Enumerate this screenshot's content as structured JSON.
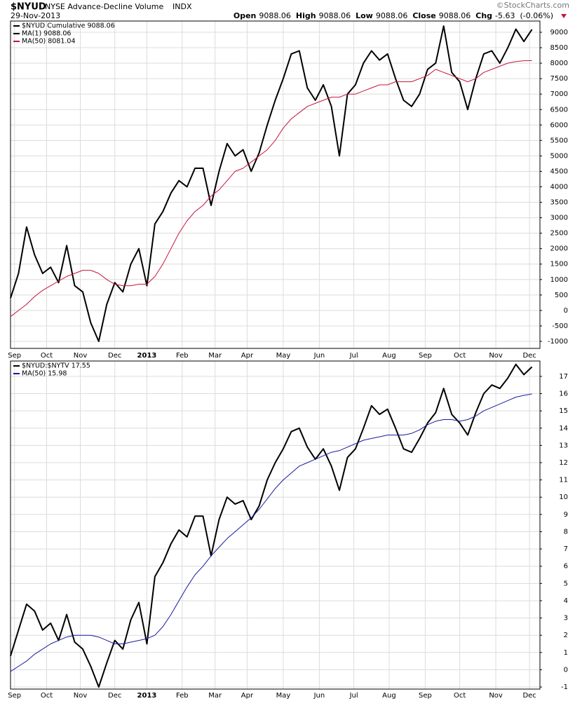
{
  "header": {
    "symbol": "$NYUD",
    "name": "NYSE Advance-Decline Volume",
    "exchange": "INDX",
    "source": "©StockCharts.com",
    "date": "29-Nov-2013",
    "quote": [
      {
        "label": "Open",
        "value": 9088.06
      },
      {
        "label": "High",
        "value": 9088.06
      },
      {
        "label": "Low",
        "value": 9088.06
      },
      {
        "label": "Close",
        "value": 9088.06
      },
      {
        "label": "Chg",
        "value": -5.63
      }
    ],
    "chg_pct": "(-0.06%)"
  },
  "chart_data": [
    {
      "type": "line",
      "xlim": [
        0,
        66
      ],
      "ylim": [
        -1227,
        9363
      ],
      "yticks": [
        -1000,
        -500,
        0,
        500,
        1000,
        1500,
        2000,
        2500,
        3000,
        3500,
        4000,
        4500,
        5000,
        5500,
        6000,
        6500,
        7000,
        7500,
        8000,
        8500,
        9000
      ],
      "xticks": [
        {
          "value": 0.5,
          "label": "Sep"
        },
        {
          "value": 4.5,
          "label": "Oct"
        },
        {
          "value": 8.7,
          "label": "Nov"
        },
        {
          "value": 13,
          "label": "Dec"
        },
        {
          "value": 17,
          "label": "2013",
          "bold": true
        },
        {
          "value": 21.4,
          "label": "Feb"
        },
        {
          "value": 25.5,
          "label": "Mar"
        },
        {
          "value": 29.5,
          "label": "Apr"
        },
        {
          "value": 34,
          "label": "May"
        },
        {
          "value": 38.5,
          "label": "Jun"
        },
        {
          "value": 42.8,
          "label": "Jul"
        },
        {
          "value": 47.2,
          "label": "Aug"
        },
        {
          "value": 51.7,
          "label": "Sep"
        },
        {
          "value": 56,
          "label": "Oct"
        },
        {
          "value": 60.5,
          "label": "Nov"
        },
        {
          "value": 64.7,
          "label": "Dec"
        }
      ],
      "grid": true,
      "series": [
        {
          "name": "$NYUD  Cumulative 9088.06",
          "color": "#000000",
          "width": 2,
          "values": [
            400,
            1200,
            2700,
            1800,
            1200,
            1400,
            900,
            2100,
            800,
            600,
            -400,
            -1000,
            200,
            900,
            600,
            1500,
            2000,
            800,
            2800,
            3200,
            3800,
            4200,
            4000,
            4600,
            4600,
            3400,
            4500,
            5400,
            5000,
            5200,
            4500,
            5100,
            6000,
            6800,
            7500,
            8300,
            8400,
            7200,
            6800,
            7300,
            6600,
            5000,
            7000,
            7300,
            8000,
            8400,
            8100,
            8300,
            7500,
            6800,
            6600,
            7000,
            7800,
            8000,
            9200,
            7700,
            7400,
            6500,
            7500,
            8300,
            8400,
            8000,
            8500,
            9100,
            8700,
            9088.06
          ]
        },
        {
          "name": "MA(1) 9088.06",
          "color": "#000000",
          "width": 1,
          "values": [
            400,
            1200,
            2700,
            1800,
            1200,
            1400,
            900,
            2100,
            800,
            600,
            -400,
            -1000,
            200,
            900,
            600,
            1500,
            2000,
            800,
            2800,
            3200,
            3800,
            4200,
            4000,
            4600,
            4600,
            3400,
            4500,
            5400,
            5000,
            5200,
            4500,
            5100,
            6000,
            6800,
            7500,
            8300,
            8400,
            7200,
            6800,
            7300,
            6600,
            5000,
            7000,
            7300,
            8000,
            8400,
            8100,
            8300,
            7500,
            6800,
            6600,
            7000,
            7800,
            8000,
            9200,
            7700,
            7400,
            6500,
            7500,
            8300,
            8400,
            8000,
            8500,
            9100,
            8700,
            9088.06
          ]
        },
        {
          "name": "MA(50) 8081.04",
          "color": "#c8143c",
          "width": 1,
          "values": [
            -200,
            0,
            200,
            450,
            650,
            800,
            950,
            1100,
            1200,
            1300,
            1300,
            1200,
            1000,
            850,
            800,
            800,
            850,
            850,
            1100,
            1500,
            2000,
            2500,
            2900,
            3200,
            3400,
            3700,
            3900,
            4200,
            4500,
            4600,
            4800,
            5000,
            5200,
            5500,
            5900,
            6200,
            6400,
            6600,
            6700,
            6800,
            6900,
            6900,
            7000,
            7000,
            7100,
            7200,
            7300,
            7300,
            7400,
            7400,
            7400,
            7500,
            7600,
            7800,
            7700,
            7600,
            7500,
            7400,
            7500,
            7700,
            7800,
            7900,
            8000,
            8050,
            8080,
            8081.04
          ]
        }
      ]
    },
    {
      "type": "line",
      "xlim": [
        0,
        66
      ],
      "ylim": [
        -1.12,
        17.89
      ],
      "yticks": [
        -1,
        0,
        1,
        2,
        3,
        4,
        5,
        6,
        7,
        8,
        9,
        10,
        11,
        12,
        13,
        14,
        15,
        16,
        17
      ],
      "xticks": [
        {
          "value": 0.5,
          "label": "Sep"
        },
        {
          "value": 4.5,
          "label": "Oct"
        },
        {
          "value": 8.7,
          "label": "Nov"
        },
        {
          "value": 13,
          "label": "Dec"
        },
        {
          "value": 17,
          "label": "2013",
          "bold": true
        },
        {
          "value": 21.4,
          "label": "Feb"
        },
        {
          "value": 25.5,
          "label": "Mar"
        },
        {
          "value": 29.5,
          "label": "Apr"
        },
        {
          "value": 34,
          "label": "May"
        },
        {
          "value": 38.5,
          "label": "Jun"
        },
        {
          "value": 42.8,
          "label": "Jul"
        },
        {
          "value": 47.2,
          "label": "Aug"
        },
        {
          "value": 51.7,
          "label": "Sep"
        },
        {
          "value": 56,
          "label": "Oct"
        },
        {
          "value": 60.5,
          "label": "Nov"
        },
        {
          "value": 64.7,
          "label": "Dec"
        }
      ],
      "grid": true,
      "series": [
        {
          "name": "$NYUD:$NYTV  17.55",
          "color": "#000000",
          "width": 2,
          "values": [
            0.8,
            2.3,
            3.8,
            3.4,
            2.3,
            2.7,
            1.7,
            3.2,
            1.6,
            1.2,
            0.2,
            -1.0,
            0.4,
            1.7,
            1.2,
            2.9,
            3.9,
            1.5,
            5.4,
            6.2,
            7.3,
            8.1,
            7.7,
            8.9,
            8.9,
            6.6,
            8.7,
            10.0,
            9.6,
            9.8,
            8.7,
            9.5,
            11.0,
            12.0,
            12.8,
            13.8,
            14.0,
            12.9,
            12.2,
            12.8,
            11.8,
            10.4,
            12.3,
            12.8,
            14.0,
            15.3,
            14.8,
            15.1,
            14.0,
            12.8,
            12.6,
            13.4,
            14.3,
            14.9,
            16.3,
            14.8,
            14.3,
            13.6,
            14.9,
            16.0,
            16.5,
            16.3,
            16.9,
            17.7,
            17.1,
            17.55
          ]
        },
        {
          "name": "MA(50) 15.98",
          "color": "#1a1a9c",
          "width": 1,
          "values": [
            -0.1,
            0.2,
            0.5,
            0.9,
            1.2,
            1.5,
            1.7,
            1.9,
            2.0,
            2.0,
            2.0,
            1.9,
            1.7,
            1.5,
            1.5,
            1.6,
            1.7,
            1.8,
            2.0,
            2.5,
            3.2,
            4.0,
            4.8,
            5.5,
            6.0,
            6.6,
            7.1,
            7.6,
            8.0,
            8.4,
            8.8,
            9.3,
            9.9,
            10.5,
            11.0,
            11.4,
            11.8,
            12.0,
            12.2,
            12.4,
            12.6,
            12.7,
            12.9,
            13.1,
            13.3,
            13.4,
            13.5,
            13.6,
            13.6,
            13.6,
            13.7,
            13.9,
            14.2,
            14.4,
            14.5,
            14.5,
            14.4,
            14.5,
            14.7,
            15.0,
            15.2,
            15.4,
            15.6,
            15.8,
            15.9,
            15.98
          ]
        }
      ]
    }
  ]
}
